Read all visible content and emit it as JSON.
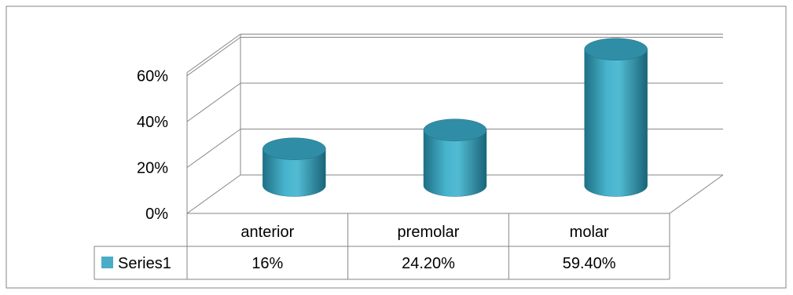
{
  "chart_data": {
    "type": "bar",
    "subtype": "3d-cylinder-with-data-table",
    "categories": [
      "anterior",
      "premolar",
      "molar"
    ],
    "series": [
      {
        "name": "Series1",
        "values": [
          0.16,
          0.242,
          0.594
        ],
        "labels": [
          "16%",
          "24.20%",
          "59.40%"
        ],
        "color": "#4bacc6"
      }
    ],
    "y_ticks": [
      "0%",
      "20%",
      "40%",
      "60%"
    ],
    "ylim": [
      0,
      0.6
    ],
    "grid": true,
    "legend": "in data table"
  }
}
